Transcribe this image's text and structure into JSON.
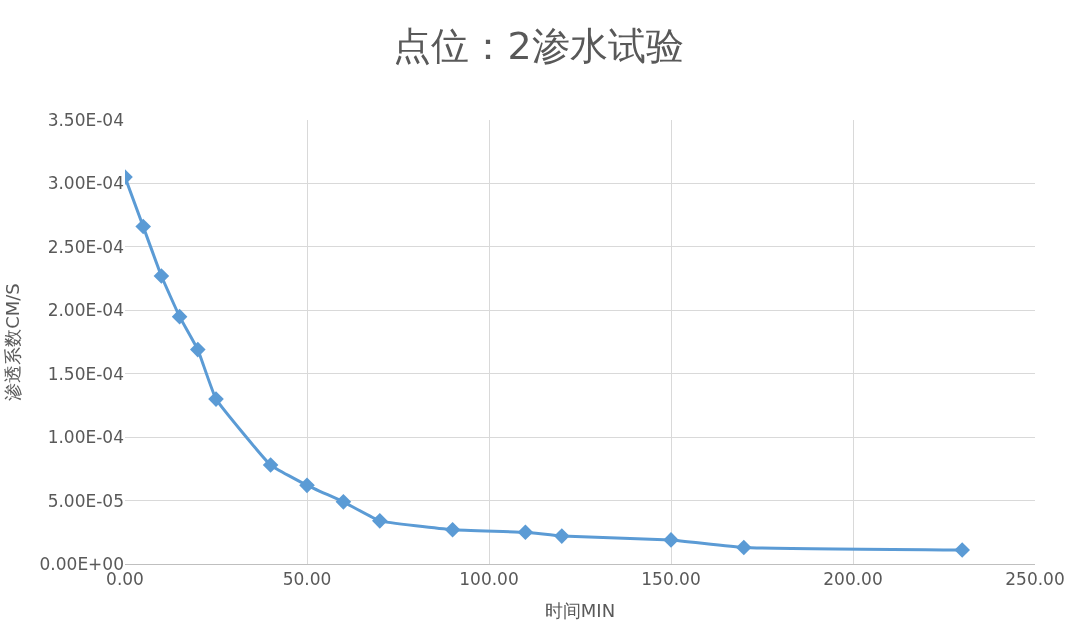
{
  "chart_data": {
    "type": "line",
    "title": "点位：2渗水试验",
    "xlabel": "时间MIN",
    "ylabel": "渗透系数CM/S",
    "x": [
      0,
      5,
      10,
      15,
      20,
      25,
      40,
      50,
      60,
      70,
      90,
      110,
      120,
      150,
      170,
      230
    ],
    "series": [
      {
        "color": "#5b9bd5",
        "values": [
          0.000305,
          0.000266,
          0.000227,
          0.000195,
          0.000169,
          0.00013,
          7.8e-05,
          6.2e-05,
          4.9e-05,
          3.4e-05,
          2.7e-05,
          2.5e-05,
          2.2e-05,
          1.9e-05,
          1.3e-05,
          1.1e-05
        ]
      }
    ],
    "xlim": [
      0,
      250
    ],
    "xticks": [
      {
        "value": 0,
        "label": "0.00"
      },
      {
        "value": 50,
        "label": "50.00"
      },
      {
        "value": 100,
        "label": "100.00"
      },
      {
        "value": 150,
        "label": "150.00"
      },
      {
        "value": 200,
        "label": "200.00"
      },
      {
        "value": 250,
        "label": "250.00"
      }
    ],
    "ylim": [
      0,
      0.00035
    ],
    "yticks": [
      {
        "value": 0,
        "label": "0.00E+00"
      },
      {
        "value": 5e-05,
        "label": "5.00E-05"
      },
      {
        "value": 0.0001,
        "label": "1.00E-04"
      },
      {
        "value": 0.00015,
        "label": "1.50E-04"
      },
      {
        "value": 0.0002,
        "label": "2.00E-04"
      },
      {
        "value": 0.00025,
        "label": "2.50E-04"
      },
      {
        "value": 0.0003,
        "label": "3.00E-04"
      },
      {
        "value": 0.00035,
        "label": "3.50E-04"
      }
    ],
    "grid": true,
    "legend": false,
    "marker": "diamond",
    "line_style": "solid"
  }
}
